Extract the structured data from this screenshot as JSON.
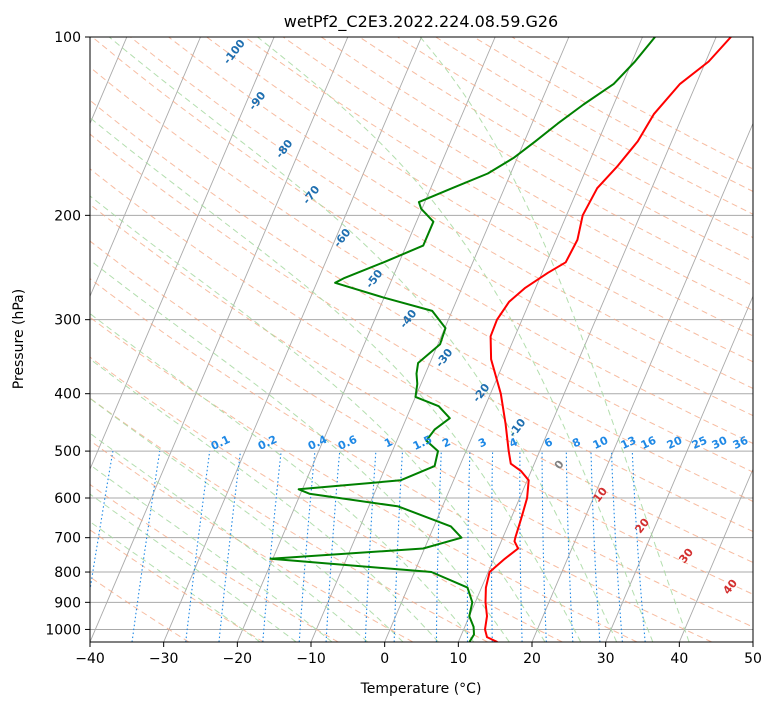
{
  "chart_data": {
    "type": "line",
    "title": "wetPf2_C2E3.2022.224.08.59.G26",
    "xlabel": "Temperature (°C)",
    "ylabel": "Pressure (hPa)",
    "xlim": [
      -40,
      50
    ],
    "ylim": [
      1050,
      100
    ],
    "y_scale": "log",
    "grid": true,
    "x_ticks": [
      -40,
      -30,
      -20,
      -10,
      0,
      10,
      20,
      30,
      40,
      50
    ],
    "x_tick_labels": [
      "−40",
      "−30",
      "−20",
      "−10",
      "0",
      "10",
      "20",
      "30",
      "40",
      "50"
    ],
    "y_ticks": [
      100,
      200,
      300,
      400,
      500,
      600,
      700,
      800,
      900,
      1000
    ],
    "y_tick_labels": [
      "100",
      "200",
      "300",
      "400",
      "500",
      "600",
      "700",
      "800",
      "900",
      "1000"
    ],
    "colors": {
      "temperature": "#ff0000",
      "dewpoint": "#008000",
      "isotherm": "#aaaaaa",
      "dry_adiabat": "#f4a582",
      "moist_adiabat": "#a6d8a0",
      "mixing_ratio": "#1e88e5",
      "dry_label": "#d32f2f",
      "moist_label": "#1f6fb0",
      "grey_label": "#808080"
    },
    "series": [
      {
        "key": "temperature",
        "points": [
          [
            15.3,
            1050
          ],
          [
            13.6,
            1030
          ],
          [
            12.9,
            1000
          ],
          [
            12.4,
            950
          ],
          [
            11.4,
            900
          ],
          [
            10.6,
            850
          ],
          [
            10.2,
            800
          ],
          [
            11.5,
            760
          ],
          [
            12.7,
            730
          ],
          [
            11.8,
            710
          ],
          [
            11.7,
            700
          ],
          [
            11.4,
            650
          ],
          [
            11.0,
            600
          ],
          [
            10.2,
            560
          ],
          [
            8.6,
            540
          ],
          [
            6.8,
            525
          ],
          [
            5.8,
            500
          ],
          [
            3.8,
            450
          ],
          [
            1.4,
            400
          ],
          [
            -1.9,
            350
          ],
          [
            -3.3,
            320
          ],
          [
            -3.4,
            300
          ],
          [
            -2.8,
            280
          ],
          [
            -1.4,
            265
          ],
          [
            0.8,
            250
          ],
          [
            2.6,
            240
          ],
          [
            2.9,
            220
          ],
          [
            2.2,
            200
          ],
          [
            2.6,
            180
          ],
          [
            4.1,
            165
          ],
          [
            5.4,
            150
          ],
          [
            6.0,
            135
          ],
          [
            7.8,
            120
          ],
          [
            10.4,
            110
          ],
          [
            12.0,
            100
          ]
        ]
      },
      {
        "key": "dewpoint",
        "points": [
          [
            11.5,
            1050
          ],
          [
            11.7,
            1020
          ],
          [
            11.2,
            990
          ],
          [
            10.0,
            950
          ],
          [
            9.6,
            900
          ],
          [
            8.1,
            850
          ],
          [
            2.3,
            800
          ],
          [
            -20.3,
            760
          ],
          [
            -0.2,
            730
          ],
          [
            4.4,
            700
          ],
          [
            2.3,
            670
          ],
          [
            -6.0,
            620
          ],
          [
            -18.8,
            590
          ],
          [
            -20.5,
            580
          ],
          [
            -7.2,
            560
          ],
          [
            -3.4,
            530
          ],
          [
            -3.8,
            500
          ],
          [
            -6.0,
            480
          ],
          [
            -5.5,
            460
          ],
          [
            -4.1,
            440
          ],
          [
            -6.3,
            420
          ],
          [
            -10.0,
            405
          ],
          [
            -10.5,
            385
          ],
          [
            -11.2,
            370
          ],
          [
            -11.6,
            355
          ],
          [
            -9.7,
            330
          ],
          [
            -9.9,
            310
          ],
          [
            -12.7,
            290
          ],
          [
            -20.2,
            275
          ],
          [
            -27.5,
            260
          ],
          [
            -26.5,
            255
          ],
          [
            -22.1,
            240
          ],
          [
            -17.7,
            225
          ],
          [
            -17.7,
            205
          ],
          [
            -20.1,
            195
          ],
          [
            -20.8,
            190
          ],
          [
            -17.1,
            180
          ],
          [
            -13.1,
            170
          ],
          [
            -10.5,
            160
          ],
          [
            -8.5,
            150
          ],
          [
            -6.5,
            140
          ],
          [
            -4.1,
            130
          ],
          [
            -1.2,
            120
          ],
          [
            0.4,
            110
          ],
          [
            1.7,
            100
          ]
        ]
      }
    ],
    "dry_adiabat_labels": [
      "10",
      "20",
      "30",
      "40"
    ],
    "grey_adiabat_label": "0",
    "moist_adiabat_labels": [
      "-100",
      "-90",
      "-80",
      "-70",
      "-60",
      "-50",
      "-40",
      "-30",
      "-20",
      "-10"
    ],
    "mixing_ratio_labels": [
      "0.1",
      "0.2",
      "0.4",
      "0.6",
      "1",
      "1.5",
      "2",
      "3",
      "4",
      "6",
      "8",
      "10",
      "13",
      "16",
      "20",
      "25",
      "30",
      "36"
    ]
  }
}
